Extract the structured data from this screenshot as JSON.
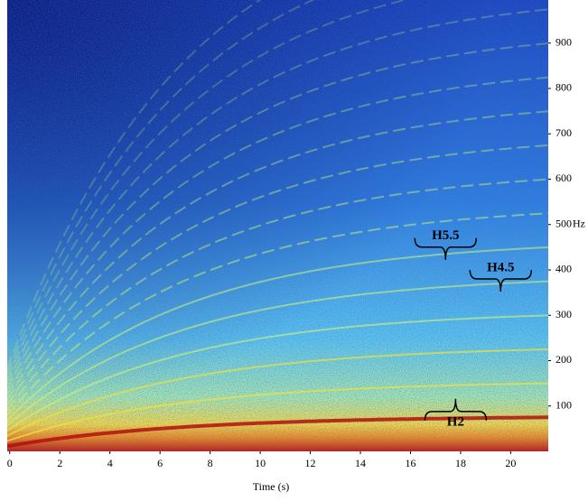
{
  "chart_data": {
    "type": "spectrogram",
    "xlabel": "Time (s)",
    "ylabel": "Hz",
    "xlim": [
      -0.1,
      21.5
    ],
    "xticks": [
      0,
      2,
      4,
      6,
      8,
      10,
      12,
      14,
      16,
      18,
      20
    ],
    "ylim": [
      0,
      995
    ],
    "yticks": [
      100,
      200,
      300,
      400,
      500,
      600,
      700,
      800,
      900
    ],
    "annotations": [
      {
        "text": "H5.5",
        "x": 17.4,
        "y": 474
      },
      {
        "text": "H4.5",
        "x": 19.6,
        "y": 404
      },
      {
        "text": "H2",
        "x": 17.8,
        "y": 64
      }
    ]
  }
}
